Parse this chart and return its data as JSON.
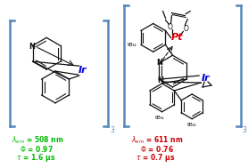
{
  "bg_color": "#ffffff",
  "bracket_color": "#5588bb",
  "ir_color": "#0000dd",
  "pt_color": "#dd0000",
  "bond_color": "#111111",
  "left_color": "#00bb00",
  "right_color": "#cc0000",
  "left_label1": "$\\lambda_{em}$ = 508 nm",
  "left_label2": "$\\Phi$ = 0.97",
  "left_label3": "$\\tau$ = 1.6 μs",
  "right_label1": "$\\lambda_{em}$ = 611 nm",
  "right_label2": "$\\Phi$ = 0.76",
  "right_label3": "$\\tau$ = 0.7 μs"
}
